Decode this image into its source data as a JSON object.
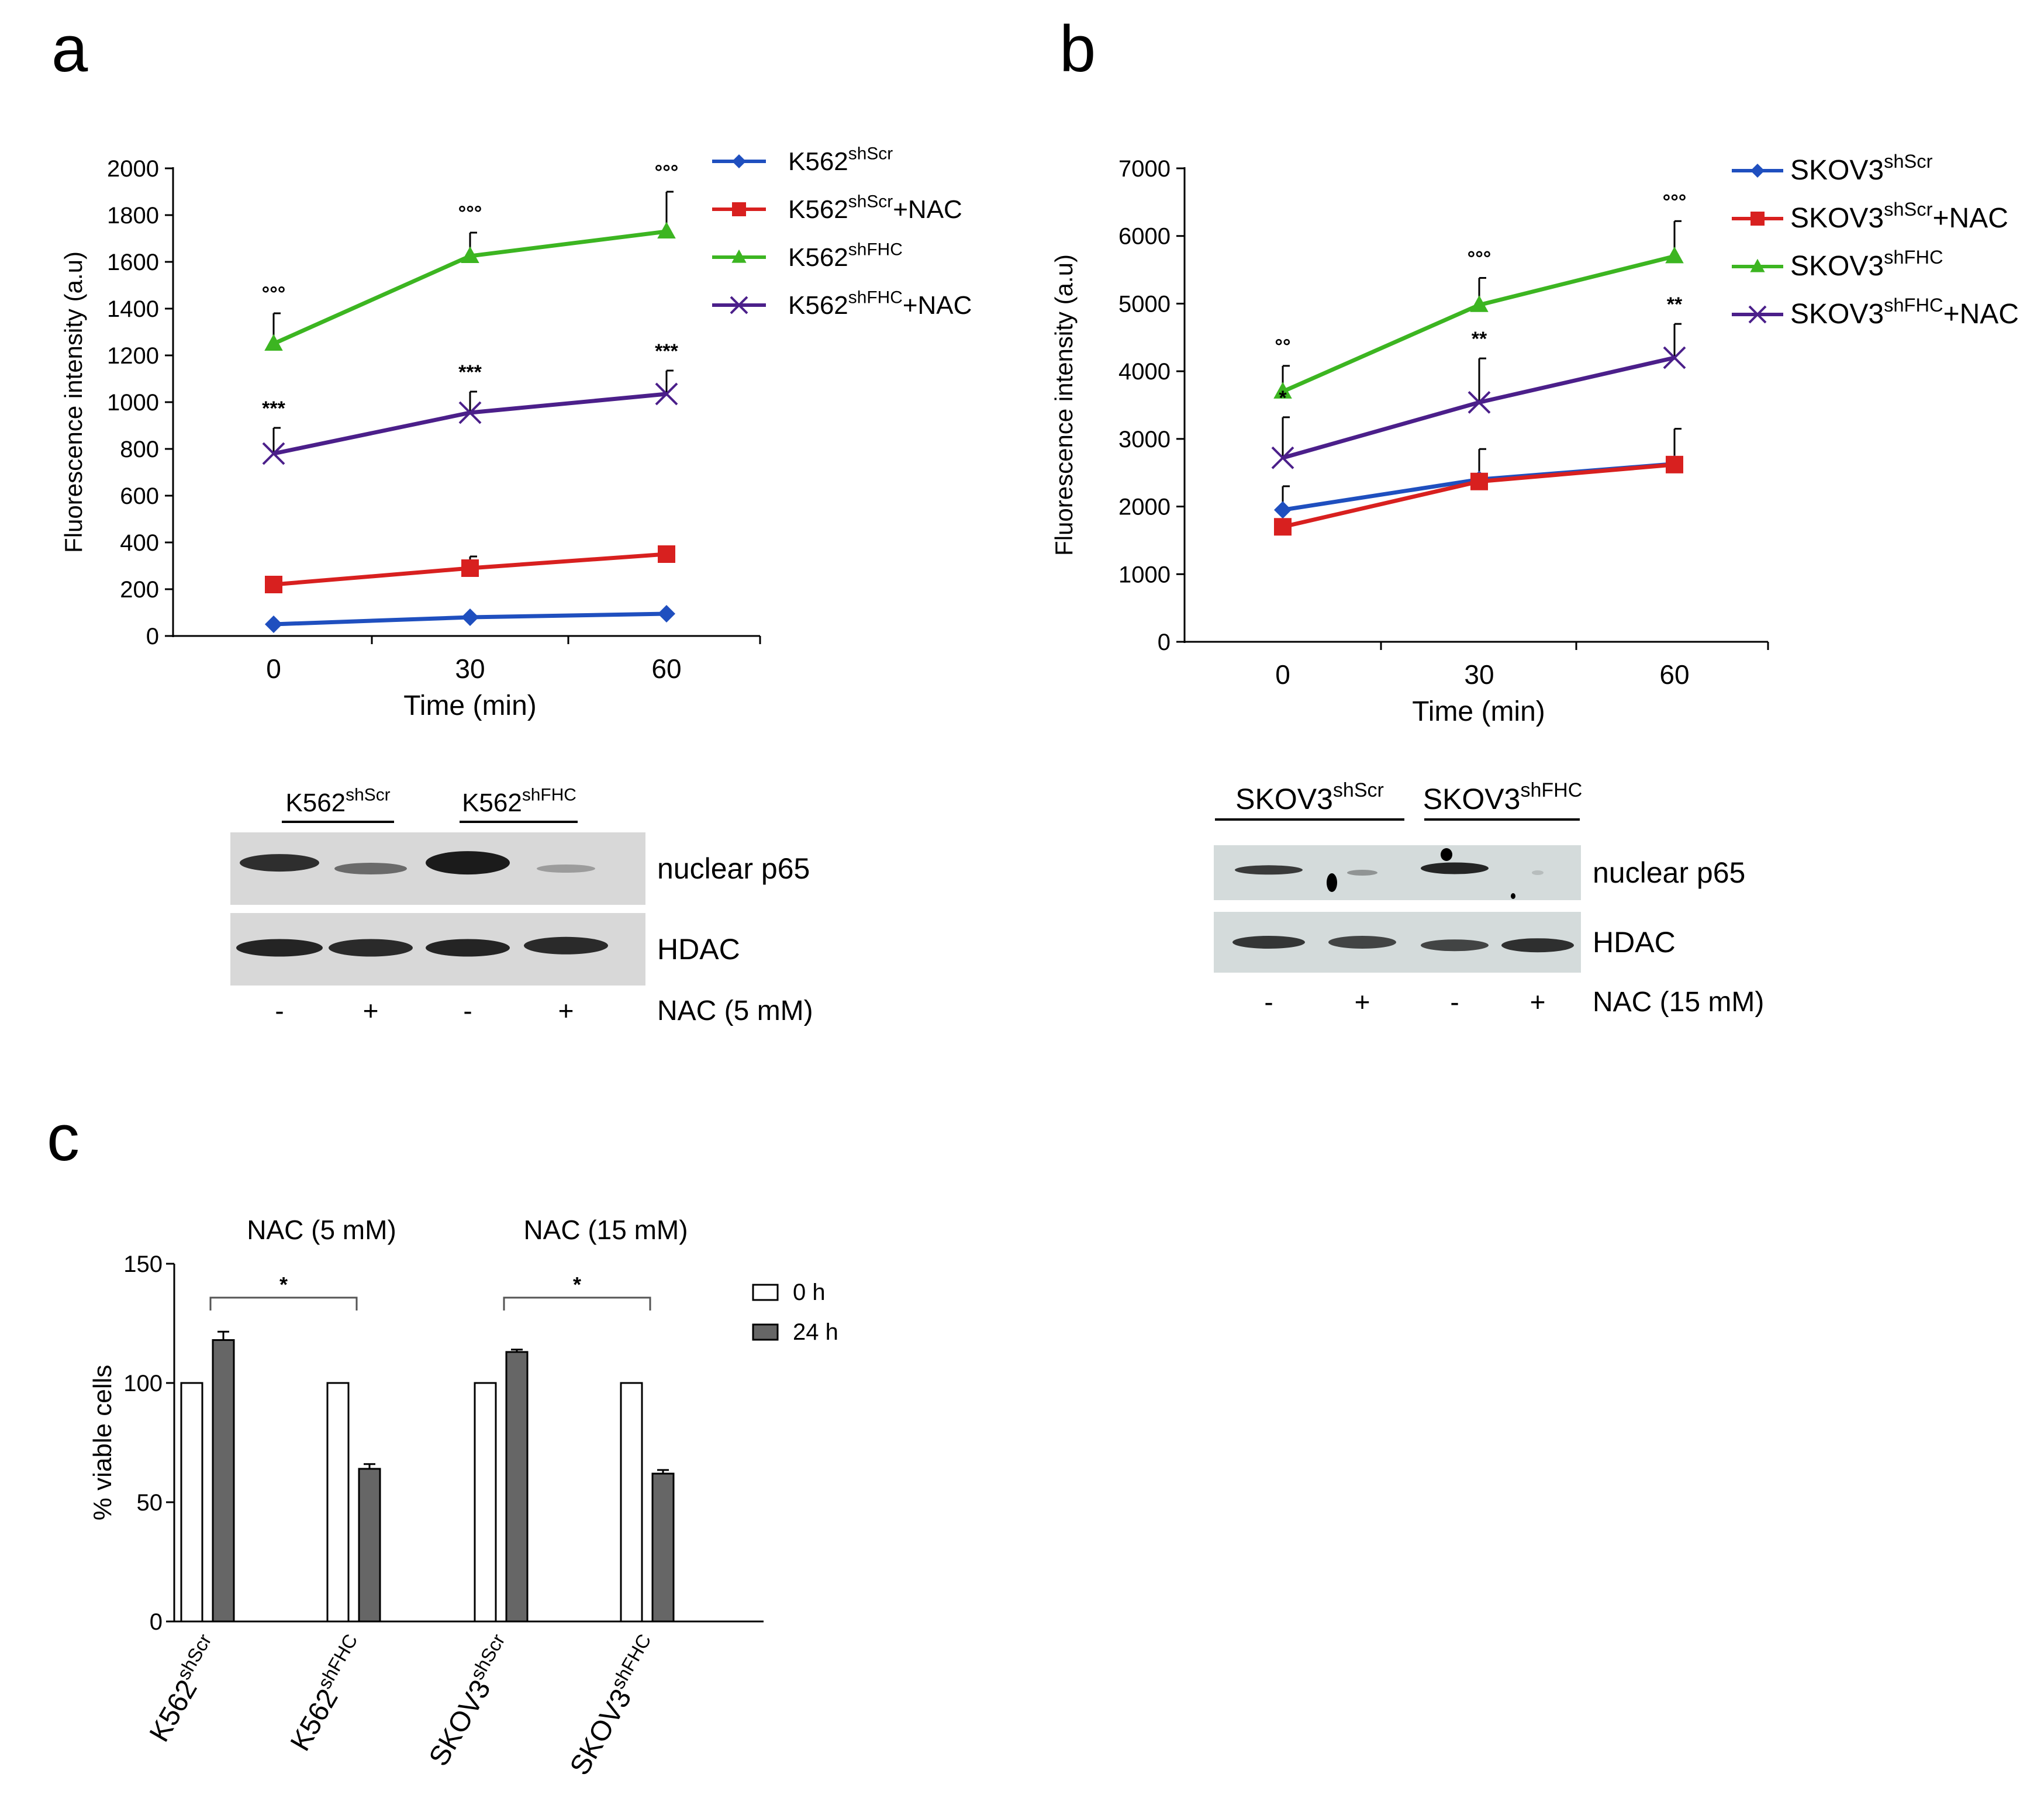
{
  "panels": {
    "a": {
      "letter": "a"
    },
    "b": {
      "letter": "b"
    },
    "c": {
      "letter": "c"
    }
  },
  "colors": {
    "blue": "#1f4fbf",
    "red": "#d8201f",
    "green": "#3cb521",
    "purple": "#4b1f8a"
  },
  "blots": {
    "a": {
      "groups": [
        {
          "base": "K562",
          "sup": "shScr"
        },
        {
          "base": "K562",
          "sup": "shFHC"
        }
      ],
      "rows": [
        "nuclear p65",
        "HDAC"
      ],
      "signs": [
        "-",
        "+",
        "-",
        "+"
      ],
      "treatment": "NAC (5 mM)"
    },
    "b": {
      "groups": [
        {
          "base": "SKOV3",
          "sup": "shScr"
        },
        {
          "base": "SKOV3",
          "sup": "shFHC"
        }
      ],
      "rows": [
        "nuclear p65",
        "HDAC"
      ],
      "signs": [
        "-",
        "+",
        "-",
        "+"
      ],
      "treatment": "NAC (15 mM)"
    }
  },
  "chart_data": [
    {
      "panel": "a",
      "type": "line",
      "x": [
        0,
        30,
        60
      ],
      "xlabel": "Time (min)",
      "ylabel": "Fluorescence intensity (a.u)",
      "ylim": [
        0,
        2000
      ],
      "yticks": [
        0,
        200,
        400,
        600,
        800,
        1000,
        1200,
        1400,
        1600,
        1800,
        2000
      ],
      "legend_position": "top-right",
      "series": [
        {
          "name": "K562",
          "name_sup": "shScr",
          "name_suffix": "",
          "color": "#1f4fbf",
          "marker": "diamond",
          "values": [
            50,
            80,
            95
          ],
          "errors": [
            0,
            0,
            0
          ]
        },
        {
          "name": "K562",
          "name_sup": "shScr",
          "name_suffix": "+NAC",
          "color": "#d8201f",
          "marker": "square",
          "values": [
            220,
            290,
            350
          ],
          "errors": [
            0,
            50,
            0
          ]
        },
        {
          "name": "K562",
          "name_sup": "shFHC",
          "name_suffix": "",
          "color": "#3cb521",
          "marker": "triangle",
          "values": [
            1250,
            1625,
            1730
          ],
          "errors": [
            130,
            100,
            170
          ],
          "annotations": [
            "°°°",
            "°°°",
            "°°°"
          ]
        },
        {
          "name": "K562",
          "name_sup": "shFHC",
          "name_suffix": "+NAC",
          "color": "#4b1f8a",
          "marker": "x",
          "values": [
            780,
            955,
            1035
          ],
          "errors": [
            110,
            90,
            100
          ],
          "annotations": [
            "***",
            "***",
            "***"
          ]
        }
      ]
    },
    {
      "panel": "b",
      "type": "line",
      "x": [
        0,
        30,
        60
      ],
      "xlabel": "Time (min)",
      "ylabel": "Fluorescence intensity (a.u)",
      "ylim": [
        0,
        7000
      ],
      "yticks": [
        0,
        1000,
        2000,
        3000,
        4000,
        5000,
        6000,
        7000
      ],
      "legend_position": "top-right",
      "series": [
        {
          "name": "SKOV3",
          "name_sup": "shScr",
          "name_suffix": "",
          "color": "#1f4fbf",
          "marker": "diamond",
          "values": [
            1950,
            2400,
            2630
          ],
          "errors": [
            350,
            450,
            520
          ]
        },
        {
          "name": "SKOV3",
          "name_sup": "shScr",
          "name_suffix": "+NAC",
          "color": "#d8201f",
          "marker": "square",
          "values": [
            1700,
            2370,
            2620
          ],
          "errors": [
            0,
            0,
            0
          ]
        },
        {
          "name": "SKOV3",
          "name_sup": "shFHC",
          "name_suffix": "",
          "color": "#3cb521",
          "marker": "triangle",
          "values": [
            3700,
            4980,
            5700
          ],
          "errors": [
            380,
            400,
            520
          ],
          "annotations": [
            "°°",
            "°°°",
            "°°°"
          ]
        },
        {
          "name": "SKOV3",
          "name_sup": "shFHC",
          "name_suffix": "+NAC",
          "color": "#4b1f8a",
          "marker": "x",
          "values": [
            2720,
            3540,
            4200
          ],
          "errors": [
            600,
            650,
            500
          ],
          "annotations": [
            "*",
            "**",
            "**"
          ]
        }
      ]
    },
    {
      "panel": "c",
      "type": "bar",
      "categories": [
        {
          "base": "K562",
          "sup": "shScr"
        },
        {
          "base": "K562",
          "sup": "shFHC"
        },
        {
          "base": "SKOV3",
          "sup": "shScr"
        },
        {
          "base": "SKOV3",
          "sup": "shFHC"
        }
      ],
      "group_titles": [
        "NAC (5 mM)",
        "NAC (15 mM)"
      ],
      "ylabel": "% viable cells",
      "ylim": [
        0,
        150
      ],
      "yticks": [
        0,
        50,
        100,
        150
      ],
      "legend_position": "top-right",
      "series": [
        {
          "name": "0 h",
          "color": "#ffffff",
          "values": [
            100,
            100,
            100,
            100
          ],
          "errors": [
            0,
            0,
            0,
            0
          ]
        },
        {
          "name": "24 h",
          "color": "#666666",
          "values": [
            118,
            64,
            113,
            62
          ],
          "errors": [
            3.5,
            2,
            1,
            1.5
          ]
        }
      ],
      "significance": [
        {
          "pair": [
            0,
            1
          ],
          "label": "*"
        },
        {
          "pair": [
            2,
            3
          ],
          "label": "*"
        }
      ]
    }
  ]
}
